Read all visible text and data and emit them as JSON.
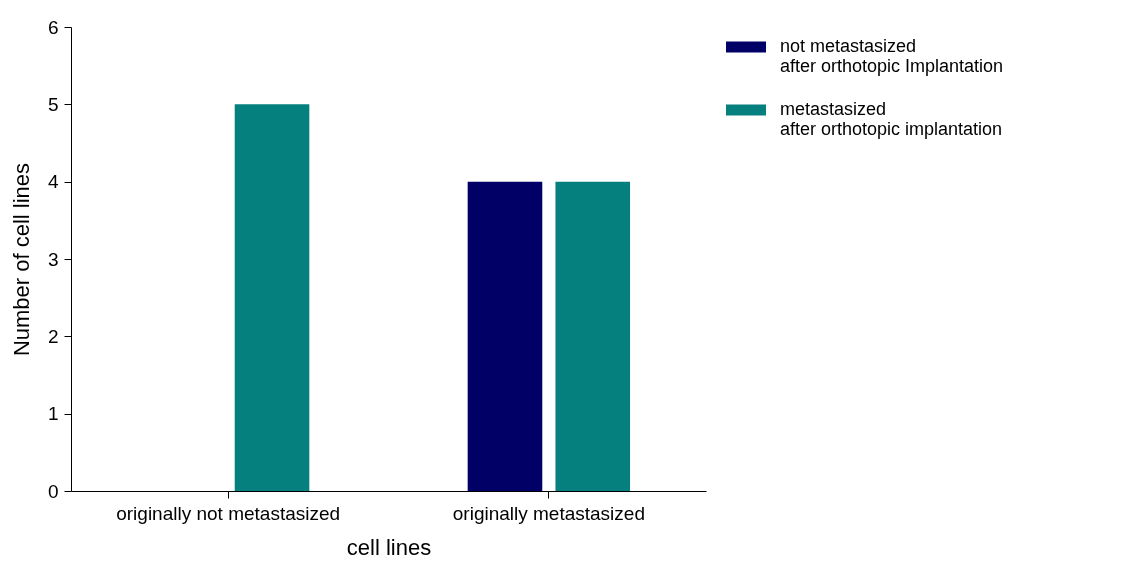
{
  "chart_data": {
    "type": "bar",
    "xlabel": "cell lines",
    "ylabel": "Number of cell lines",
    "categories": [
      "originally not metastasized",
      "originally metastasized"
    ],
    "series": [
      {
        "name": "not metastasized\nafter orthotopic Implantation",
        "color": "#000066",
        "values": [
          0,
          4
        ]
      },
      {
        "name": "metastasized\nafter orthotopic implantation",
        "color": "#067f7f",
        "values": [
          5,
          4
        ]
      }
    ],
    "ylim": [
      0,
      6
    ],
    "yticks": [
      0,
      1,
      2,
      3,
      4,
      5,
      6
    ],
    "legend": "top right"
  }
}
